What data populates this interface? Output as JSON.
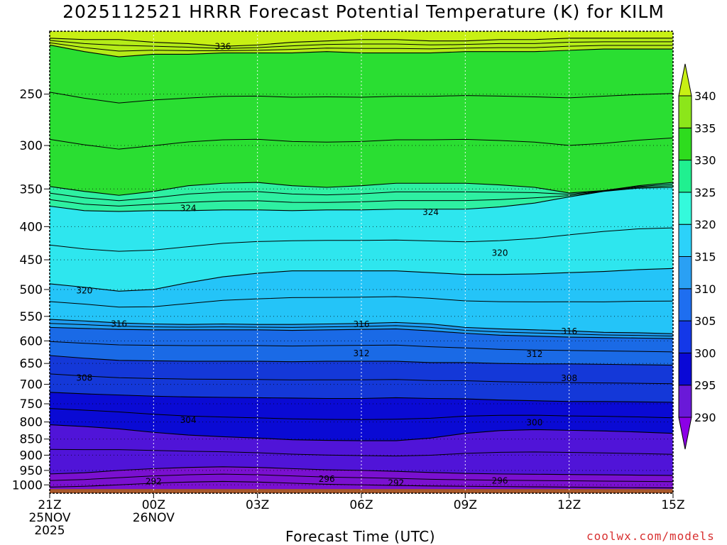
{
  "title": "2025112521 HRRR Forecast Potential Temperature (K) for KILM",
  "watermark": "coolwx.com/models",
  "chart_data": {
    "type": "heatmap",
    "title": "2025112521 HRRR Forecast Potential Temperature (K) for KILM",
    "xlabel": "Forecast Time (UTC)",
    "ylabel": "",
    "x_range_hours": [
      0,
      18
    ],
    "x_ticks": [
      {
        "hour": 0,
        "lines": [
          "21Z",
          "25NOV",
          "2025"
        ]
      },
      {
        "hour": 3,
        "lines": [
          "00Z",
          "26NOV"
        ]
      },
      {
        "hour": 6,
        "lines": [
          "03Z"
        ]
      },
      {
        "hour": 9,
        "lines": [
          "06Z"
        ]
      },
      {
        "hour": 12,
        "lines": [
          "09Z"
        ]
      },
      {
        "hour": 15,
        "lines": [
          "12Z"
        ]
      },
      {
        "hour": 18,
        "lines": [
          "15Z"
        ]
      }
    ],
    "y_range_hPa": [
      1030,
      200
    ],
    "y_ticks": [
      250,
      300,
      350,
      400,
      450,
      500,
      550,
      600,
      650,
      700,
      750,
      800,
      850,
      900,
      950,
      1000
    ],
    "grid": true,
    "colorbar": {
      "levels": [
        290,
        295,
        300,
        305,
        310,
        315,
        320,
        325,
        330,
        335,
        340
      ],
      "colors": [
        "#8c00e6",
        "#6a19d8",
        "#0a08d6",
        "#1438e8",
        "#1e6ef0",
        "#2aa0f4",
        "#2cd2fa",
        "#34fadc",
        "#20f090",
        "#2edc1e",
        "#8ce61a",
        "#c8f014"
      ],
      "placement": "right"
    },
    "contour_labels": [
      {
        "hour": 5.0,
        "hPa": 211,
        "label": "336"
      },
      {
        "hour": 4.0,
        "hPa": 375,
        "label": "324"
      },
      {
        "hour": 11.0,
        "hPa": 380,
        "label": "324"
      },
      {
        "hour": 13.0,
        "hPa": 439,
        "label": "320"
      },
      {
        "hour": 1.0,
        "hPa": 502,
        "label": "320"
      },
      {
        "hour": 2.0,
        "hPa": 565,
        "label": "316"
      },
      {
        "hour": 9.0,
        "hPa": 566,
        "label": "316"
      },
      {
        "hour": 15.0,
        "hPa": 580,
        "label": "316"
      },
      {
        "hour": 9.0,
        "hPa": 627,
        "label": "312"
      },
      {
        "hour": 14.0,
        "hPa": 629,
        "label": "312"
      },
      {
        "hour": 1.0,
        "hPa": 684,
        "label": "308"
      },
      {
        "hour": 15.0,
        "hPa": 685,
        "label": "308"
      },
      {
        "hour": 4.0,
        "hPa": 795,
        "label": "304"
      },
      {
        "hour": 14.0,
        "hPa": 802,
        "label": "300"
      },
      {
        "hour": 3.0,
        "hPa": 988,
        "label": "292"
      },
      {
        "hour": 8.0,
        "hPa": 979,
        "label": "296"
      },
      {
        "hour": 10.0,
        "hPa": 993,
        "label": "292"
      },
      {
        "hour": 13.0,
        "hPa": 986,
        "label": "296"
      }
    ],
    "bands": [
      {
        "theta": 336,
        "hPa": [
          205,
          206,
          206,
          208,
          209,
          211,
          210,
          208,
          207,
          206,
          206,
          207,
          207,
          206,
          206,
          205,
          205,
          205,
          205
        ]
      },
      {
        "theta": 335,
        "hPa": [
          210,
          215,
          219,
          217,
          217,
          216,
          216,
          216,
          215,
          216,
          216,
          216,
          215,
          215,
          215,
          214,
          213,
          213,
          213
        ]
      },
      {
        "theta": 330,
        "hPa": [
          347,
          353,
          358,
          353,
          346,
          343,
          342,
          346,
          348,
          346,
          343,
          343,
          343,
          345,
          348,
          355,
          352,
          346,
          342
        ]
      },
      {
        "theta": 325,
        "hPa": [
          372,
          378,
          379,
          378,
          378,
          377,
          377,
          378,
          377,
          377,
          376,
          376,
          376,
          373,
          368,
          360,
          353,
          349,
          348
        ]
      },
      {
        "theta": 320,
        "hPa": [
          490,
          496,
          503,
          500,
          488,
          478,
          472,
          468,
          468,
          468,
          468,
          471,
          474,
          474,
          473,
          471,
          469,
          466,
          464
        ]
      },
      {
        "theta": 316,
        "hPa": [
          556,
          559,
          563,
          565,
          566,
          565,
          566,
          566,
          565,
          564,
          562,
          565,
          572,
          575,
          577,
          579,
          582,
          583,
          585
        ]
      },
      {
        "theta": 315,
        "hPa": [
          572,
          574,
          576,
          577,
          577,
          577,
          577,
          578,
          577,
          576,
          575,
          579,
          584,
          588,
          590,
          592,
          593,
          594,
          595
        ]
      },
      {
        "theta": 310,
        "hPa": [
          632,
          638,
          643,
          644,
          645,
          645,
          645,
          646,
          645,
          645,
          645,
          648,
          648,
          650,
          651,
          651,
          652,
          653,
          654
        ]
      },
      {
        "theta": 305,
        "hPa": [
          720,
          724,
          727,
          730,
          732,
          733,
          734,
          735,
          736,
          736,
          734,
          736,
          737,
          740,
          742,
          744,
          744,
          745,
          746
        ]
      },
      {
        "theta": 300,
        "hPa": [
          808,
          813,
          820,
          830,
          838,
          843,
          847,
          852,
          854,
          855,
          855,
          847,
          833,
          825,
          822,
          824,
          826,
          829,
          833
        ]
      },
      {
        "theta": 295,
        "hPa": [
          962,
          958,
          950,
          944,
          940,
          938,
          940,
          944,
          948,
          950,
          953,
          957,
          960,
          962,
          963,
          964,
          965,
          966,
          967
        ]
      },
      {
        "theta": 292,
        "hPa": [
          1008,
          1005,
          1000,
          994,
          990,
          988,
          990,
          994,
          998,
          1000,
          1002,
          1004,
          1005,
          1006,
          1007,
          1008,
          1009,
          1010,
          1011
        ]
      }
    ],
    "ground": {
      "hPa_top": 1015,
      "color": "#a8582a"
    }
  }
}
